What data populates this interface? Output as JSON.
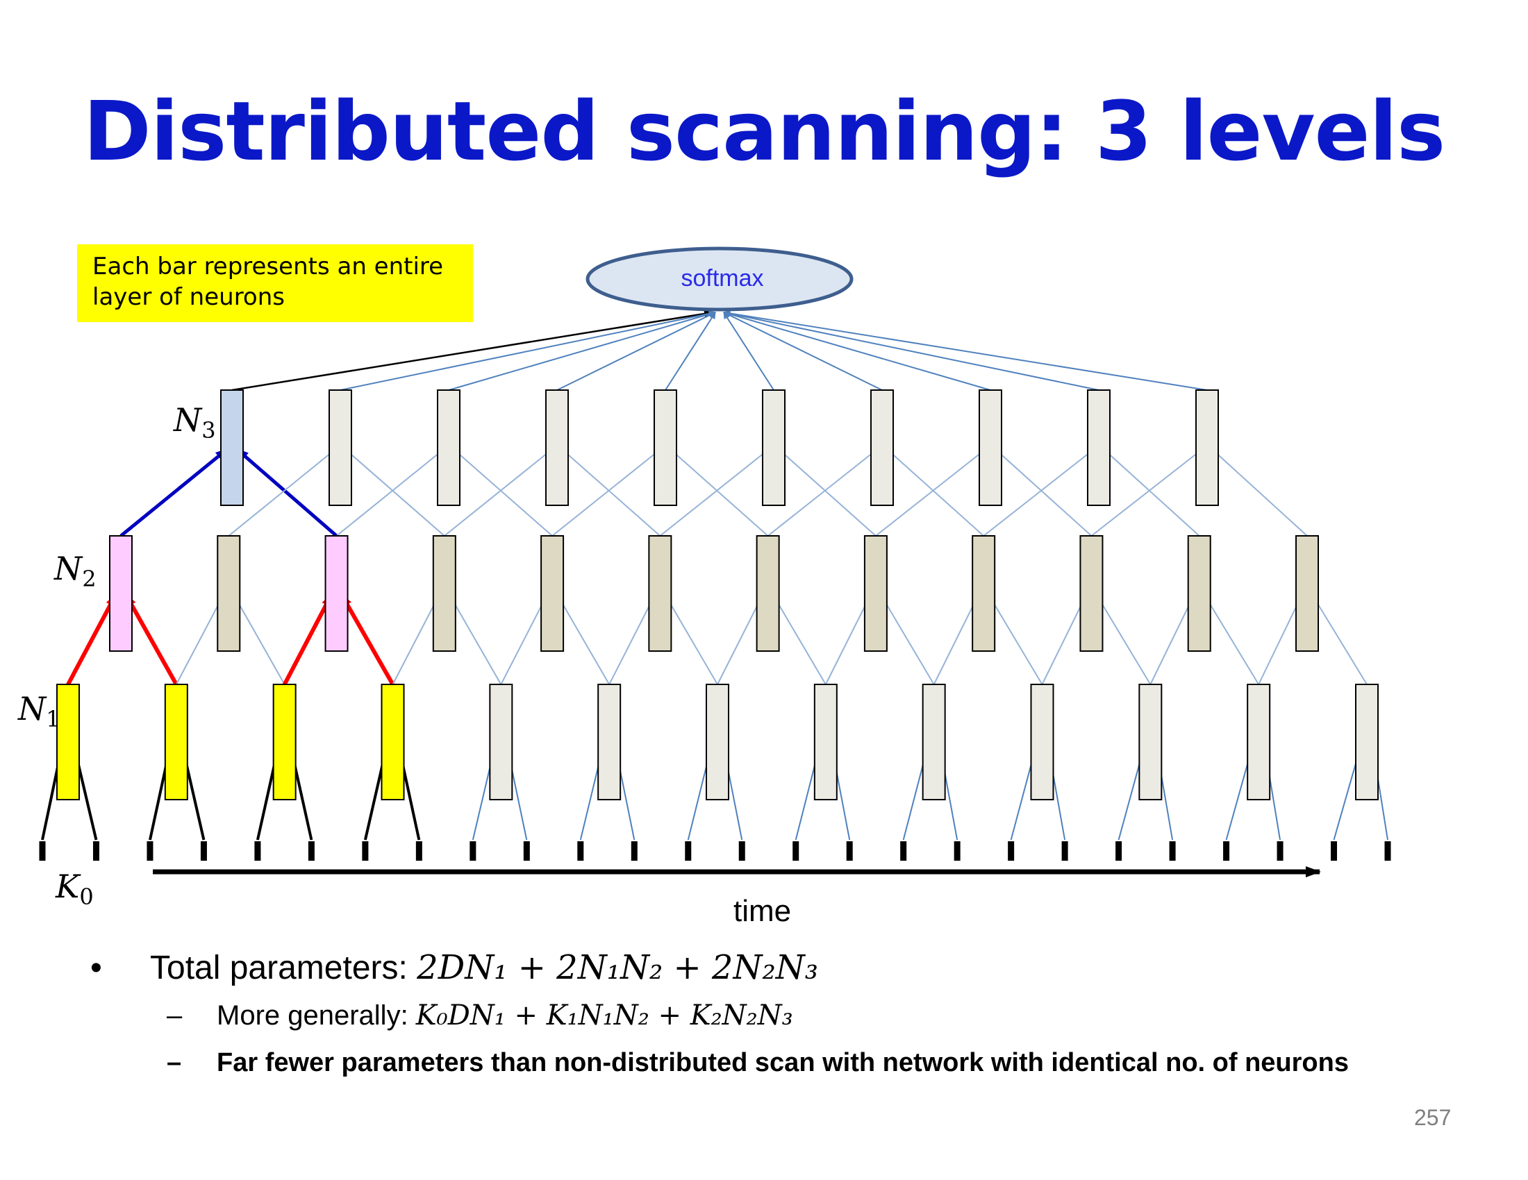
{
  "title": "Distributed scanning: 3 levels",
  "note": "Each bar represents an entire layer of neurons",
  "softmax_label": "softmax",
  "levels": {
    "n3": {
      "sym": "N",
      "sub": "3"
    },
    "n2": {
      "sym": "N",
      "sub": "2"
    },
    "n1": {
      "sym": "N",
      "sub": "1"
    },
    "k0": {
      "sym": "K",
      "sub": "0"
    }
  },
  "time_label": "time",
  "bullets": {
    "b1": {
      "mark": "•",
      "text": "Total parameters: ",
      "formula": "2DN₁ + 2N₁N₂ + 2N₂N₃"
    },
    "b2": {
      "mark": "–",
      "text": "More generally: ",
      "formula": "K₀DN₁ + K₁N₁N₂ + K₂N₂N₃"
    },
    "b3": {
      "mark": "–",
      "text": "Far fewer parameters than non-distributed scan with network with identical no. of neurons"
    }
  },
  "page_number": "257",
  "colors": {
    "title": "#0b18c8",
    "note_bg": "#ffff00",
    "softmax_fill": "#dce6f2",
    "softmax_stroke": "#3e5e8e",
    "softmax_text": "#2a2ae8",
    "n1_active": "#ffff00",
    "n1_inactive": "#ecebe3",
    "n2_active": "#ffccff",
    "n2_inactive": "#ddd9c3",
    "n3_active": "#c5d5ec",
    "n3_inactive": "#ecebe3",
    "edge_faint": "#95b3d7",
    "edge_blue": "#4f81bd",
    "edge_red": "#ff0000",
    "edge_dark_blue": "#0000c0"
  }
}
